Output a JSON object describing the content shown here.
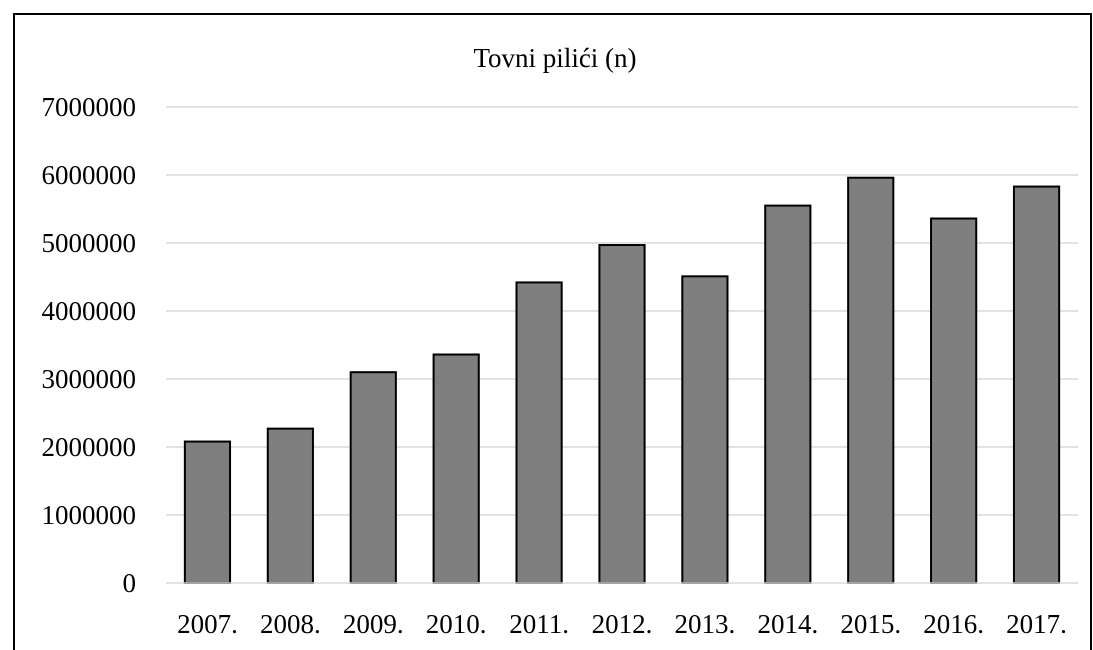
{
  "chart_data": {
    "type": "bar",
    "title": "Tovni pilići (n)",
    "xlabel": "",
    "ylabel": "",
    "categories": [
      "2007.",
      "2008.",
      "2009.",
      "2010.",
      "2011.",
      "2012.",
      "2013.",
      "2014.",
      "2015.",
      "2016.",
      "2017."
    ],
    "values": [
      2080000,
      2270000,
      3100000,
      3360000,
      4420000,
      4970000,
      4510000,
      5550000,
      5960000,
      5360000,
      5830000
    ],
    "ylim": [
      0,
      7000000
    ],
    "yticks": [
      "0",
      "1000000",
      "2000000",
      "3000000",
      "4000000",
      "5000000",
      "6000000",
      "7000000"
    ],
    "grid": true,
    "legend": "none",
    "bar_color": "#7f7f7f",
    "bar_edge_color": "#000000",
    "grid_color": "#d9d9d9"
  }
}
